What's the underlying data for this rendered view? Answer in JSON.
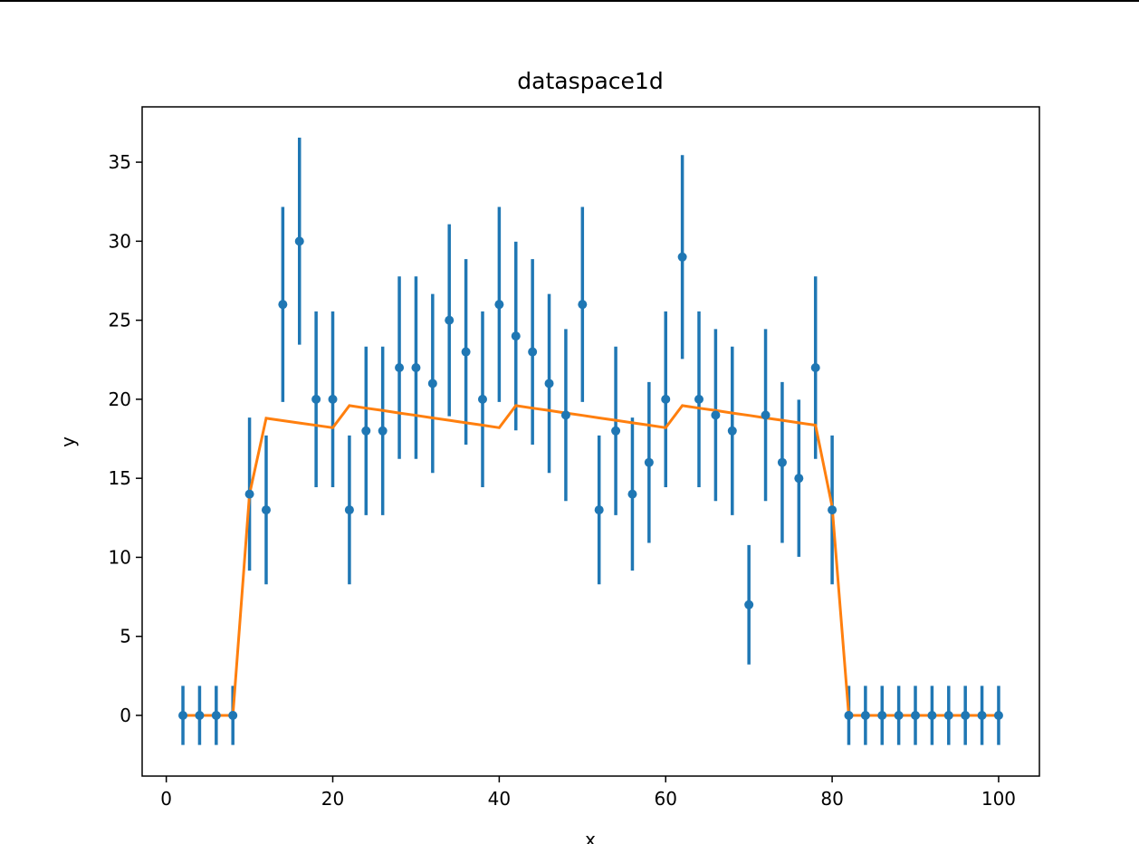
{
  "chart_data": {
    "type": "errorbar",
    "title": "dataspace1d",
    "xlabel": "x",
    "ylabel": "y",
    "x": [
      2,
      4,
      6,
      8,
      10,
      12,
      14,
      16,
      18,
      20,
      22,
      24,
      26,
      28,
      30,
      32,
      34,
      36,
      38,
      40,
      42,
      44,
      46,
      48,
      50,
      52,
      54,
      56,
      58,
      60,
      62,
      64,
      66,
      68,
      70,
      72,
      74,
      76,
      78,
      80,
      82,
      84,
      86,
      88,
      90,
      92,
      94,
      96,
      98,
      100
    ],
    "points": {
      "color": "#1f77b4",
      "values": [
        0,
        0,
        0,
        0,
        14,
        13,
        26,
        30,
        20,
        20,
        13,
        18,
        18,
        22,
        22,
        21,
        25,
        23,
        20,
        26,
        24,
        23,
        21,
        19,
        26,
        13,
        18,
        14,
        16,
        20,
        29,
        20,
        19,
        18,
        7,
        19,
        16,
        15,
        22,
        13,
        0,
        0,
        0,
        0,
        0,
        0,
        0,
        0,
        0,
        0
      ],
      "errors": [
        1.87,
        1.87,
        1.87,
        1.87,
        4.84,
        4.71,
        6.17,
        6.55,
        5.56,
        5.56,
        4.71,
        5.33,
        5.33,
        5.77,
        5.77,
        5.66,
        6.07,
        5.87,
        5.56,
        6.17,
        5.97,
        5.87,
        5.66,
        5.44,
        6.17,
        4.71,
        5.33,
        4.84,
        5.09,
        5.56,
        6.45,
        5.56,
        5.44,
        5.33,
        3.78,
        5.44,
        5.09,
        4.97,
        5.77,
        4.71,
        1.87,
        1.87,
        1.87,
        1.87,
        1.87,
        1.87,
        1.87,
        1.87,
        1.87,
        1.87
      ]
    },
    "model": {
      "color": "#ff7f0e",
      "values": [
        0,
        0,
        0,
        0,
        14,
        18.8,
        18.65,
        18.5,
        18.35,
        18.2,
        19.6,
        19.44,
        19.29,
        19.13,
        18.98,
        18.82,
        18.67,
        18.51,
        18.36,
        18.2,
        19.6,
        19.44,
        19.29,
        19.13,
        18.98,
        18.82,
        18.67,
        18.51,
        18.36,
        18.2,
        19.6,
        19.44,
        19.29,
        19.13,
        18.98,
        18.82,
        18.67,
        18.51,
        18.36,
        13.2,
        0,
        0,
        0,
        0,
        0,
        0,
        0,
        0,
        0,
        0
      ]
    },
    "xlim": [
      -2.9,
      104.9
    ],
    "xticks": [
      0,
      20,
      40,
      60,
      80,
      100
    ],
    "ylim": [
      -3.84,
      38.5
    ],
    "yticks": [
      0,
      5,
      10,
      15,
      20,
      25,
      30,
      35
    ]
  }
}
